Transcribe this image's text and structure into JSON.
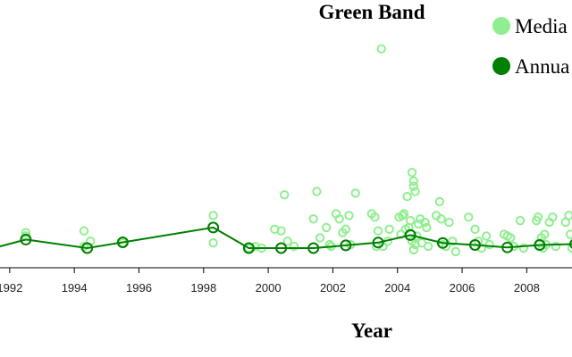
{
  "chart_data": {
    "type": "scatter",
    "title": "Green Band",
    "xlabel": "Year",
    "ylabel": "",
    "xlim": [
      1991.7,
      2009.4
    ],
    "ylim": [
      0,
      6.7
    ],
    "x_ticks": [
      "1992",
      "1994",
      "1996",
      "1998",
      "2000",
      "2002",
      "2004",
      "2006",
      "2008"
    ],
    "legend_position": "top-right",
    "grid": false,
    "colors": {
      "median": "#90ee90",
      "annual": "#008000"
    },
    "series": [
      {
        "name": "Media",
        "kind": "points",
        "points": [
          [
            1992.5,
            0.35
          ],
          [
            1992.5,
            0.45
          ],
          [
            1994.3,
            0.05
          ],
          [
            1994.5,
            0.2
          ],
          [
            1994.3,
            0.5
          ],
          [
            1995.5,
            0.15
          ],
          [
            1998.3,
            0.15
          ],
          [
            1998.3,
            0.95
          ],
          [
            1999.4,
            0.0
          ],
          [
            1999.6,
            0.05
          ],
          [
            1999.8,
            0.0
          ],
          [
            2000.2,
            0.55
          ],
          [
            2000.4,
            0.5
          ],
          [
            2000.5,
            1.55
          ],
          [
            2000.6,
            0.2
          ],
          [
            2000.8,
            0.05
          ],
          [
            2001.4,
            0.85
          ],
          [
            2001.5,
            1.65
          ],
          [
            2001.6,
            0.3
          ],
          [
            2001.8,
            0.6
          ],
          [
            2001.9,
            0.1
          ],
          [
            2001.95,
            0.05
          ],
          [
            2002.1,
            1.0
          ],
          [
            2002.2,
            0.85
          ],
          [
            2002.3,
            0.45
          ],
          [
            2002.4,
            0.55
          ],
          [
            2002.5,
            0.95
          ],
          [
            2002.55,
            0.1
          ],
          [
            2002.7,
            1.6
          ],
          [
            2003.2,
            1.0
          ],
          [
            2003.3,
            0.9
          ],
          [
            2003.35,
            0.05
          ],
          [
            2003.4,
            0.5
          ],
          [
            2003.5,
            5.8
          ],
          [
            2003.55,
            0.05
          ],
          [
            2003.7,
            0.2
          ],
          [
            2003.75,
            0.55
          ],
          [
            2004.05,
            0.9
          ],
          [
            2004.1,
            0.4
          ],
          [
            2004.15,
            0.95
          ],
          [
            2004.2,
            1.0
          ],
          [
            2004.25,
            0.55
          ],
          [
            2004.3,
            1.5
          ],
          [
            2004.35,
            0.6
          ],
          [
            2004.4,
            0.8
          ],
          [
            2004.45,
            0.2
          ],
          [
            2004.45,
            2.2
          ],
          [
            2004.5,
            1.8
          ],
          [
            2004.5,
            1.95
          ],
          [
            2004.55,
            1.65
          ],
          [
            2004.5,
            -0.05
          ],
          [
            2004.55,
            0.1
          ],
          [
            2004.6,
            0.35
          ],
          [
            2004.65,
            0.7
          ],
          [
            2004.7,
            0.85
          ],
          [
            2004.75,
            0.15
          ],
          [
            2004.85,
            0.75
          ],
          [
            2004.9,
            0.6
          ],
          [
            2004.95,
            0.05
          ],
          [
            2005.2,
            0.95
          ],
          [
            2005.3,
            1.35
          ],
          [
            2005.35,
            0.85
          ],
          [
            2005.4,
            0.1
          ],
          [
            2005.5,
            0.05
          ],
          [
            2005.6,
            0.75
          ],
          [
            2005.7,
            0.2
          ],
          [
            2005.8,
            -0.1
          ],
          [
            2006.2,
            0.9
          ],
          [
            2006.4,
            0.55
          ],
          [
            2006.5,
            0.2
          ],
          [
            2006.6,
            0.0
          ],
          [
            2006.75,
            0.35
          ],
          [
            2006.85,
            0.1
          ],
          [
            2007.3,
            0.4
          ],
          [
            2007.4,
            0.35
          ],
          [
            2007.5,
            0.3
          ],
          [
            2007.6,
            0.05
          ],
          [
            2007.8,
            0.8
          ],
          [
            2007.9,
            0.0
          ],
          [
            2008.3,
            0.8
          ],
          [
            2008.35,
            0.9
          ],
          [
            2008.4,
            0.15
          ],
          [
            2008.45,
            0.3
          ],
          [
            2008.5,
            0.0
          ],
          [
            2008.55,
            0.4
          ],
          [
            2008.6,
            0.1
          ],
          [
            2008.7,
            0.75
          ],
          [
            2008.8,
            0.9
          ],
          [
            2008.9,
            0.05
          ],
          [
            2009.2,
            0.75
          ],
          [
            2009.3,
            0.95
          ],
          [
            2009.35,
            0.4
          ],
          [
            2009.4,
            0.0
          ]
        ]
      },
      {
        "name": "Annua",
        "kind": "line",
        "points": [
          [
            1991.5,
            0.0
          ],
          [
            1992.5,
            0.25
          ],
          [
            1994.4,
            0.0
          ],
          [
            1995.5,
            0.17
          ],
          [
            1998.3,
            0.6
          ],
          [
            1999.4,
            0.0
          ],
          [
            2000.4,
            0.0
          ],
          [
            2001.4,
            0.0
          ],
          [
            2002.4,
            0.08
          ],
          [
            2003.4,
            0.16
          ],
          [
            2004.4,
            0.38
          ],
          [
            2005.4,
            0.15
          ],
          [
            2006.4,
            0.09
          ],
          [
            2007.4,
            0.02
          ],
          [
            2008.4,
            0.09
          ],
          [
            2009.5,
            0.12
          ]
        ]
      }
    ]
  }
}
